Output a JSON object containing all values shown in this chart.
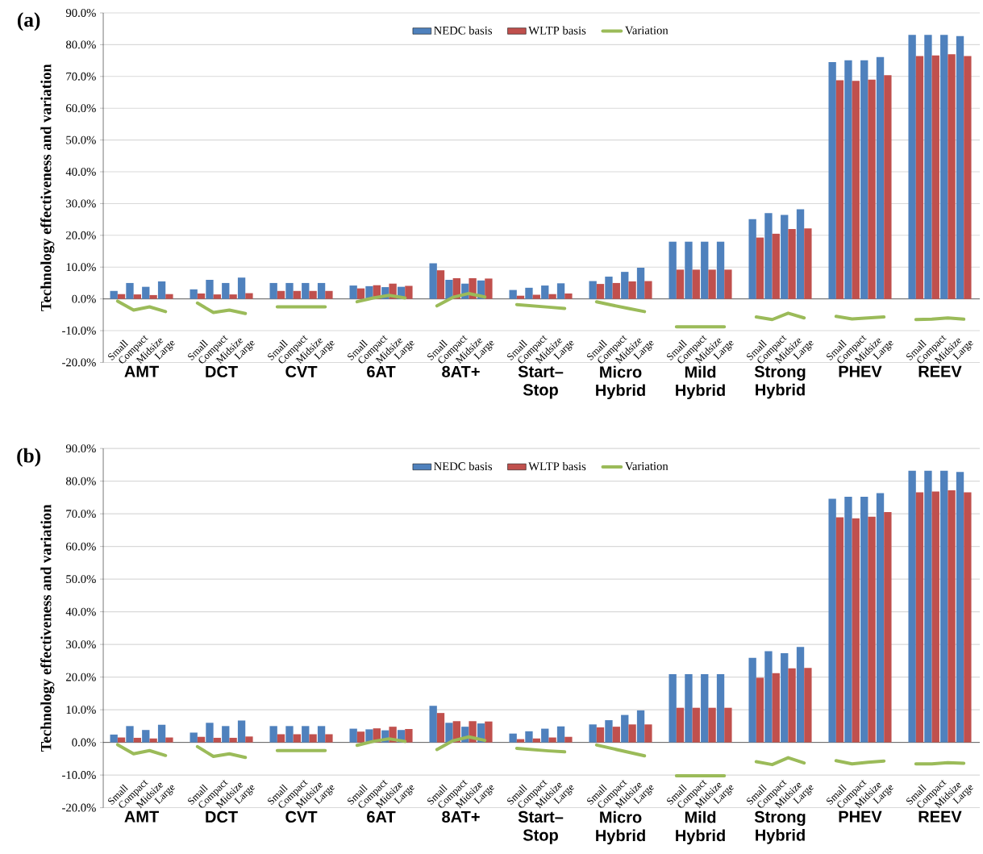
{
  "chart_data": [
    {
      "type": "bar",
      "title": "(a)",
      "ylabel": "Technology effectiveness and variation",
      "categories": [
        "Small",
        "Compact",
        "Midsize",
        "Large",
        null,
        "Small",
        "Compact",
        "Midsize",
        "Large",
        null,
        "Small",
        "Compact",
        "Midsize",
        "Large",
        null,
        "Small",
        "Compact",
        "Midsize",
        "Large",
        null,
        "Small",
        "Compact",
        "Midsize",
        "Large",
        null,
        "Small",
        "Compact",
        "Midsize",
        "Large",
        null,
        "Small",
        "Compact",
        "Midsize",
        "Large",
        null,
        "Small",
        "Compact",
        "Midsize",
        "Large",
        null,
        "Small",
        "Compact",
        "Midsize",
        "Large",
        null,
        "Small",
        "Compact",
        "Midsize",
        "Large",
        null,
        "Small",
        "Compact",
        "Midsize",
        "Large"
      ],
      "series": [
        {
          "name": "NEDC basis",
          "color": "#4f81bd",
          "values": [
            2.5,
            5,
            3.8,
            5.5,
            null,
            3,
            6,
            5,
            6.7,
            null,
            5,
            5,
            5,
            5,
            null,
            4.2,
            4,
            3.7,
            3.8,
            null,
            11.2,
            6,
            4.8,
            5.8,
            null,
            2.8,
            3.5,
            4.2,
            4.9,
            null,
            5.6,
            7,
            8.5,
            9.8,
            null,
            18,
            18,
            18,
            18,
            null,
            25.1,
            27,
            26.4,
            28.2,
            null,
            74.5,
            75.1,
            75.1,
            76.1,
            null,
            83.1,
            83.1,
            83.1,
            82.7
          ]
        },
        {
          "name": "WLTP basis",
          "color": "#c0504d",
          "values": [
            1.5,
            1.4,
            1.2,
            1.5,
            null,
            1.7,
            1.4,
            1.4,
            1.8,
            null,
            2.5,
            2.5,
            2.5,
            2.5,
            null,
            3.3,
            4.3,
            4.8,
            4.1,
            null,
            9,
            6.5,
            6.5,
            6.4,
            null,
            1,
            1.3,
            1.5,
            1.7,
            null,
            4.7,
            5,
            5.5,
            5.6,
            null,
            9.2,
            9.2,
            9.2,
            9.2,
            null,
            19.3,
            20.5,
            22,
            22.2,
            null,
            68.8,
            68.6,
            69,
            70.4,
            null,
            76.4,
            76.6,
            77,
            76.4
          ]
        },
        {
          "name": "Variation",
          "color": "#9bbb59",
          "type": "line",
          "values": [
            -0.7,
            -3.5,
            -2.5,
            -4,
            null,
            -1.3,
            -4.3,
            -3.5,
            -4.6,
            null,
            -2.5,
            -2.5,
            -2.5,
            -2.5,
            null,
            -0.9,
            0.3,
            1.1,
            0.3,
            null,
            -2.2,
            0.5,
            1.7,
            0.6,
            null,
            -1.8,
            -2.2,
            -2.6,
            -3,
            null,
            -0.9,
            -2,
            -3,
            -4,
            null,
            -8.8,
            -8.8,
            -8.8,
            -8.8,
            null,
            -5.7,
            -6.5,
            -4.5,
            -6,
            null,
            -5.5,
            -6.3,
            -6,
            -5.7,
            null,
            -6.5,
            -6.4,
            -6,
            -6.4
          ]
        }
      ],
      "ylim": [
        -20,
        90
      ],
      "yticks": [
        {
          "value": -20,
          "label": "-20.0%"
        },
        {
          "value": -10,
          "label": "-10.0%"
        },
        {
          "value": 0,
          "label": "0.0%"
        },
        {
          "value": 10,
          "label": "10.0%"
        },
        {
          "value": 20,
          "label": "20.0%"
        },
        {
          "value": 30,
          "label": "30.0%"
        },
        {
          "value": 40,
          "label": "40.0%"
        },
        {
          "value": 50,
          "label": "50.0%"
        },
        {
          "value": 60,
          "label": "60.0%"
        },
        {
          "value": 70,
          "label": "70.0%"
        },
        {
          "value": 80,
          "label": "80.0%"
        },
        {
          "value": 90,
          "label": "90.0%"
        }
      ],
      "grid": "y",
      "legend": "top",
      "annotations": [
        "AMT",
        "DCT",
        "CVT",
        "6AT",
        "8AT+",
        "Start– Stop",
        "Micro Hybrid",
        "Mild Hybrid",
        "Strong Hybrid",
        "PHEV",
        "REEV"
      ]
    },
    {
      "type": "bar",
      "title": "(b)",
      "ylabel": "Technology effectiveness and variation",
      "categories": [
        "Small",
        "Compact",
        "Midsize",
        "Large",
        null,
        "Small",
        "Compact",
        "Midsize",
        "Large",
        null,
        "Small",
        "Compact",
        "Midsize",
        "Large",
        null,
        "Small",
        "Compact",
        "Midsize",
        "Large",
        null,
        "Small",
        "Compact",
        "Midsize",
        "Large",
        null,
        "Small",
        "Compact",
        "Midsize",
        "Large",
        null,
        "Small",
        "Compact",
        "Midsize",
        "Large",
        null,
        "Small",
        "Compact",
        "Midsize",
        "Large",
        null,
        "Small",
        "Compact",
        "Midsize",
        "Large",
        null,
        "Small",
        "Compact",
        "Midsize",
        "Large",
        null,
        "Small",
        "Compact",
        "Midsize",
        "Large"
      ],
      "series": [
        {
          "name": "NEDC basis",
          "color": "#4f81bd",
          "values": [
            2.4,
            5,
            3.8,
            5.4,
            null,
            3,
            6,
            5,
            6.7,
            null,
            5,
            5,
            5,
            5,
            null,
            4.2,
            4,
            3.7,
            3.8,
            null,
            11.2,
            6,
            4.8,
            5.8,
            null,
            2.7,
            3.4,
            4.2,
            4.9,
            null,
            5.5,
            6.8,
            8.4,
            9.8,
            null,
            20.9,
            20.9,
            20.9,
            20.9,
            null,
            25.9,
            27.9,
            27.3,
            29.2,
            null,
            74.6,
            75.2,
            75.2,
            76.3,
            null,
            83.2,
            83.2,
            83.2,
            82.8
          ]
        },
        {
          "name": "WLTP basis",
          "color": "#c0504d",
          "values": [
            1.5,
            1.4,
            1.2,
            1.5,
            null,
            1.7,
            1.4,
            1.4,
            1.8,
            null,
            2.5,
            2.5,
            2.5,
            2.5,
            null,
            3.3,
            4.3,
            4.8,
            4.1,
            null,
            9,
            6.5,
            6.5,
            6.4,
            null,
            1,
            1.2,
            1.5,
            1.7,
            null,
            4.6,
            4.8,
            5.5,
            5.5,
            null,
            10.6,
            10.6,
            10.6,
            10.6,
            null,
            19.8,
            21.2,
            22.7,
            22.8,
            null,
            68.9,
            68.6,
            69.1,
            70.5,
            null,
            76.6,
            76.8,
            77.2,
            76.6
          ]
        },
        {
          "name": "Variation",
          "color": "#9bbb59",
          "type": "line",
          "values": [
            -0.7,
            -3.5,
            -2.5,
            -4,
            null,
            -1.3,
            -4.3,
            -3.5,
            -4.6,
            null,
            -2.5,
            -2.5,
            -2.5,
            -2.5,
            null,
            -0.9,
            0.3,
            1.1,
            0.3,
            null,
            -2.2,
            0.5,
            1.7,
            0.6,
            null,
            -1.8,
            -2.2,
            -2.6,
            -2.9,
            null,
            -0.8,
            -1.9,
            -3,
            -4.1,
            null,
            -10.2,
            -10.2,
            -10.2,
            -10.2,
            null,
            -5.9,
            -6.8,
            -4.7,
            -6.3,
            null,
            -5.6,
            -6.6,
            -6.1,
            -5.7,
            null,
            -6.6,
            -6.6,
            -6.2,
            -6.4
          ]
        }
      ],
      "ylim": [
        -20,
        90
      ],
      "yticks": [
        {
          "value": -20,
          "label": "-20.0%"
        },
        {
          "value": -10,
          "label": "-10.0%"
        },
        {
          "value": 0,
          "label": "0.0%"
        },
        {
          "value": 10,
          "label": "10.0%"
        },
        {
          "value": 20,
          "label": "20.0%"
        },
        {
          "value": 30,
          "label": "30.0%"
        },
        {
          "value": 40,
          "label": "40.0%"
        },
        {
          "value": 50,
          "label": "50.0%"
        },
        {
          "value": 60,
          "label": "60.0%"
        },
        {
          "value": 70,
          "label": "70.0%"
        },
        {
          "value": 80,
          "label": "80.0%"
        },
        {
          "value": 90,
          "label": "90.0%"
        }
      ],
      "grid": "y",
      "legend": "top",
      "annotations": [
        "AMT",
        "DCT",
        "CVT",
        "6AT",
        "8AT+",
        "Start– Stop",
        "Micro Hybrid",
        "Mild Hybrid",
        "Strong Hybrid",
        "PHEV",
        "REEV"
      ]
    }
  ]
}
